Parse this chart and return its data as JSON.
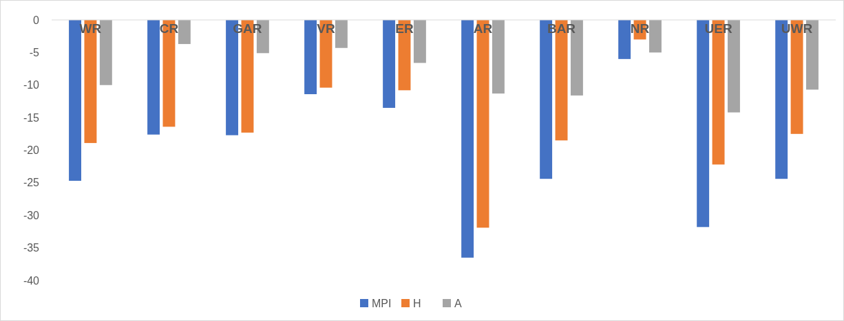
{
  "chart_data": {
    "type": "bar",
    "categories": [
      "WR",
      "CR",
      "GAR",
      "VR",
      "ER",
      "AR",
      "BAR",
      "NR",
      "UER",
      "UWR"
    ],
    "series": [
      {
        "name": "MPI",
        "color": "#4472c4",
        "values": [
          -24.7,
          -17.6,
          -17.7,
          -11.4,
          -13.5,
          -36.5,
          -24.4,
          -6.0,
          -31.8,
          -24.4
        ]
      },
      {
        "name": "H",
        "color": "#ed7d31",
        "values": [
          -18.9,
          -16.4,
          -17.3,
          -10.4,
          -10.8,
          -31.9,
          -18.5,
          -3.0,
          -22.2,
          -17.5
        ]
      },
      {
        "name": "A",
        "color": "#a5a5a5",
        "values": [
          -10.0,
          -3.7,
          -5.1,
          -4.3,
          -6.6,
          -11.3,
          -11.6,
          -5.0,
          -14.2,
          -10.7
        ]
      }
    ],
    "ylim": [
      -40,
      0
    ],
    "yticks": [
      -40,
      -35,
      -30,
      -25,
      -20,
      -15,
      -10,
      -5,
      0
    ],
    "grid": false,
    "legend": "bottom"
  }
}
